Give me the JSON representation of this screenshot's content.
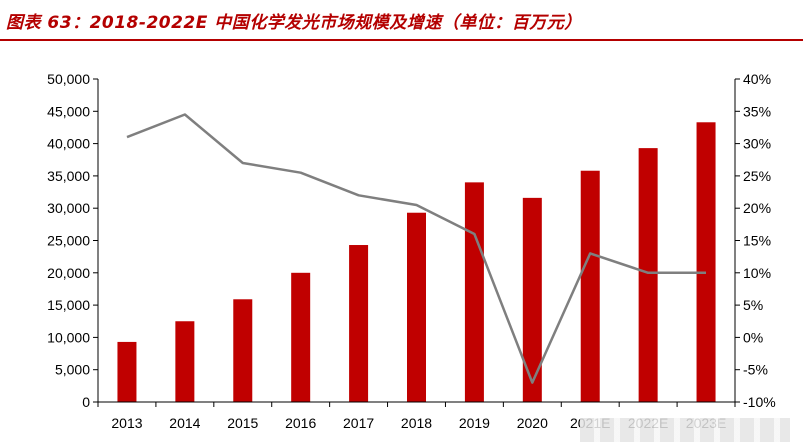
{
  "title": "图表 63：2018-2022E 中国化学发光市场规模及增速（单位：百万元）",
  "colors": {
    "bar": "#c00000",
    "line": "#7f7f7f",
    "title": "#b40000",
    "axis": "#000000"
  },
  "chart_data": {
    "type": "bar",
    "title": "图表 63：2018-2022E 中国化学发光市场规模及增速（单位：百万元）",
    "categories": [
      "2013",
      "2014",
      "2015",
      "2016",
      "2017",
      "2018",
      "2019",
      "2020",
      "2021E",
      "2022E",
      "2023E"
    ],
    "series": [
      {
        "type": "bar",
        "axis": "left",
        "values": [
          9300,
          12500,
          15900,
          20000,
          24300,
          29300,
          34000,
          31600,
          35800,
          39300,
          43300
        ]
      },
      {
        "type": "line",
        "axis": "right",
        "values": [
          31.0,
          34.5,
          27.0,
          25.5,
          22.0,
          20.5,
          16.0,
          -7.0,
          13.0,
          10.0,
          10.0
        ]
      }
    ],
    "y_left": {
      "min": 0,
      "max": 50000,
      "step": 5000,
      "tick_labels": [
        "0",
        "5,000",
        "10,000",
        "15,000",
        "20,000",
        "25,000",
        "30,000",
        "35,000",
        "40,000",
        "45,000",
        "50,000"
      ]
    },
    "y_right": {
      "min": -10,
      "max": 40,
      "step": 5,
      "tick_labels": [
        "-10%",
        "-5%",
        "0%",
        "5%",
        "10%",
        "15%",
        "20%",
        "25%",
        "30%",
        "35%",
        "40%"
      ]
    },
    "grid": false,
    "legend": "none"
  }
}
